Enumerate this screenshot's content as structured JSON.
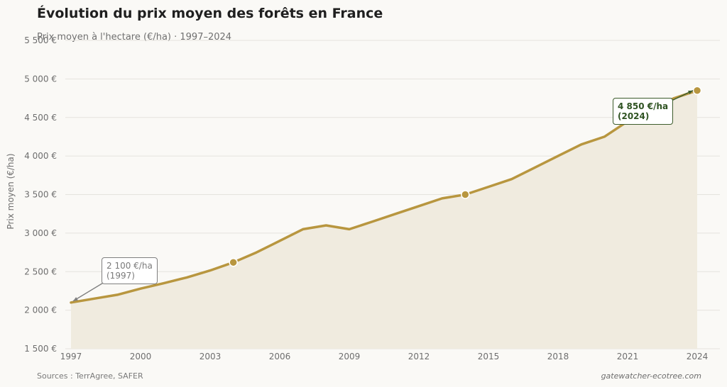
{
  "title": "Évolution du prix moyen des forêts en France",
  "subtitle": "Prix moyen à l'hectare (€/ha) · 1997–2024",
  "sources": "Sources : TerrAgree, SAFER",
  "website": "gatewatcher-ecotree.com",
  "annotations": {
    "start_value": "2 100 €/ha",
    "start_year": "(1997)",
    "end_value": "4 850 €/ha",
    "end_year": "(2024)"
  },
  "colors": {
    "line": "#b8963f",
    "area": "#f0ebdf",
    "end_annotation": "#3d5c2c",
    "start_annotation": "#7f7f7f"
  },
  "chart_data": {
    "type": "area",
    "title": "Évolution du prix moyen des forêts en France",
    "subtitle": "Prix moyen à l'hectare (€/ha) · 1997–2024",
    "xlabel": "",
    "ylabel": "Prix moyen (€/ha)",
    "x": [
      1997,
      1998,
      1999,
      2000,
      2001,
      2002,
      2003,
      2004,
      2005,
      2006,
      2007,
      2008,
      2009,
      2010,
      2011,
      2012,
      2013,
      2014,
      2015,
      2016,
      2017,
      2018,
      2019,
      2020,
      2021,
      2022,
      2023,
      2024
    ],
    "series": [
      {
        "values": [
          2100,
          2150,
          2200,
          2280,
          2350,
          2425,
          2515,
          2620,
          2750,
          2900,
          3050,
          3100,
          3050,
          3150,
          3250,
          3350,
          3450,
          3500,
          3600,
          3700,
          3850,
          4000,
          4150,
          4250,
          4450,
          4600,
          4750,
          4850
        ]
      }
    ],
    "highlighted_points": [
      2004,
      2014,
      2024
    ],
    "xlim": [
      1997,
      2024
    ],
    "ylim": [
      1500,
      5500
    ],
    "x_ticks": [
      "1997",
      "2000",
      "2003",
      "2006",
      "2009",
      "2012",
      "2015",
      "2018",
      "2021",
      "2024"
    ],
    "y_ticks": [
      "1 500 €",
      "2 000 €",
      "2 500 €",
      "3 000 €",
      "3 500 €",
      "4 000 €",
      "4 500 €",
      "5 000 €",
      "5 500 €"
    ],
    "y_tick_values": [
      1500,
      2000,
      2500,
      3000,
      3500,
      4000,
      4500,
      5000,
      5500
    ],
    "grid": true,
    "legend": "none"
  }
}
